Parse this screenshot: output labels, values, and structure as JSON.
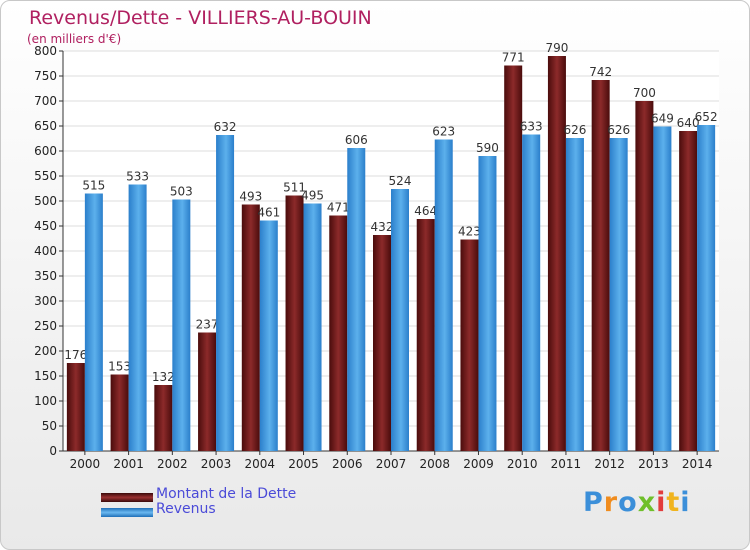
{
  "header": {
    "title": "Revenus/Dette - VILLIERS-AU-BOUIN",
    "subtitle": "(en milliers d'€)"
  },
  "chart_data": {
    "type": "bar",
    "title": "Revenus/Dette - VILLIERS-AU-BOUIN",
    "ylabel": "(en milliers d'€)",
    "xlabel": "",
    "categories": [
      "2000",
      "2001",
      "2002",
      "2003",
      "2004",
      "2005",
      "2006",
      "2007",
      "2008",
      "2009",
      "2010",
      "2011",
      "2012",
      "2013",
      "2014"
    ],
    "series": [
      {
        "name": "Montant de la Dette",
        "color": "#7a1f1f",
        "values": [
          176,
          153,
          132,
          237,
          493,
          511,
          471,
          432,
          464,
          423,
          771,
          790,
          742,
          700,
          640
        ]
      },
      {
        "name": "Revenus",
        "color": "#3b9ae1",
        "values": [
          515,
          533,
          503,
          632,
          461,
          495,
          606,
          524,
          623,
          590,
          633,
          626,
          626,
          649,
          652
        ]
      }
    ],
    "ylim": [
      0,
      800
    ],
    "yticks": [
      0,
      50,
      100,
      150,
      200,
      250,
      300,
      350,
      400,
      450,
      500,
      550,
      600,
      650,
      700,
      750,
      800
    ],
    "grid": true,
    "legend": "bottom-left"
  },
  "legend": {
    "items": [
      {
        "label": "Montant de la Dette",
        "color": "#7a1f1f"
      },
      {
        "label": "Revenus",
        "color": "#3b9ae1"
      }
    ]
  },
  "logo": {
    "letters": [
      "P",
      "r",
      "o",
      "x",
      "i",
      "t",
      "i"
    ],
    "colors": [
      "#3b8fd9",
      "#f08c1e",
      "#3b8fd9",
      "#6fbf2a",
      "#e23c3c",
      "#f0b41e",
      "#3b8fd9"
    ]
  }
}
